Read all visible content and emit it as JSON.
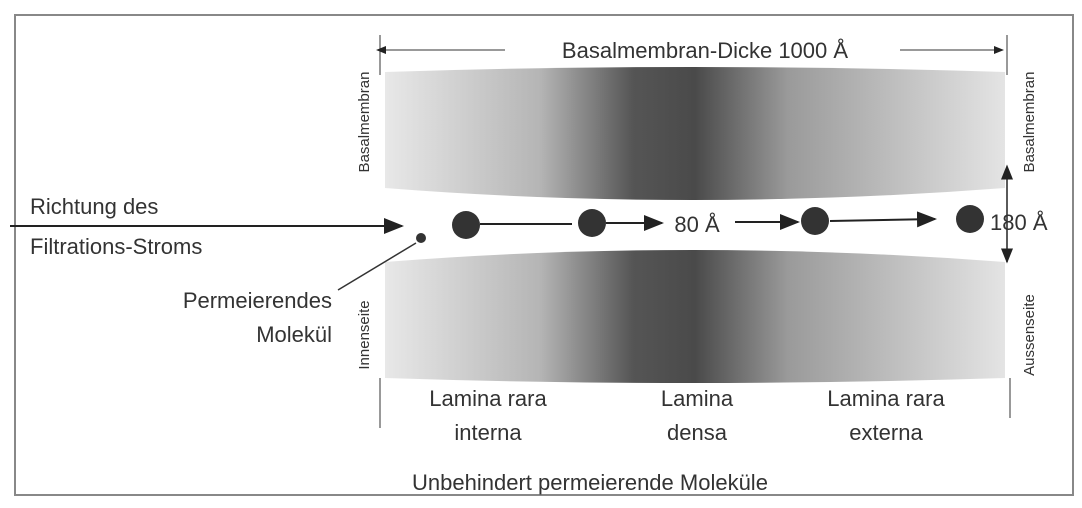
{
  "diagram": {
    "thickness_label": "Basalmembran-Dicke 1000 Å",
    "membrane_left": "Basalmembran",
    "membrane_right": "Basalmembran",
    "flow_label": [
      "Richtung des",
      "Filtrations-Stroms"
    ],
    "pore_label": "80 Å",
    "gap_label": "180 Å",
    "molecule_label": [
      "Permeierendes",
      "Molekül"
    ],
    "inner_side": "Innenseite",
    "outer_side": "Aussenseite",
    "layers": [
      [
        "Lamina rara",
        "interna"
      ],
      [
        "Lamina",
        "densa"
      ],
      [
        "Lamina rara",
        "externa"
      ]
    ],
    "caption": "Unbehindert permeierende Moleküle"
  }
}
